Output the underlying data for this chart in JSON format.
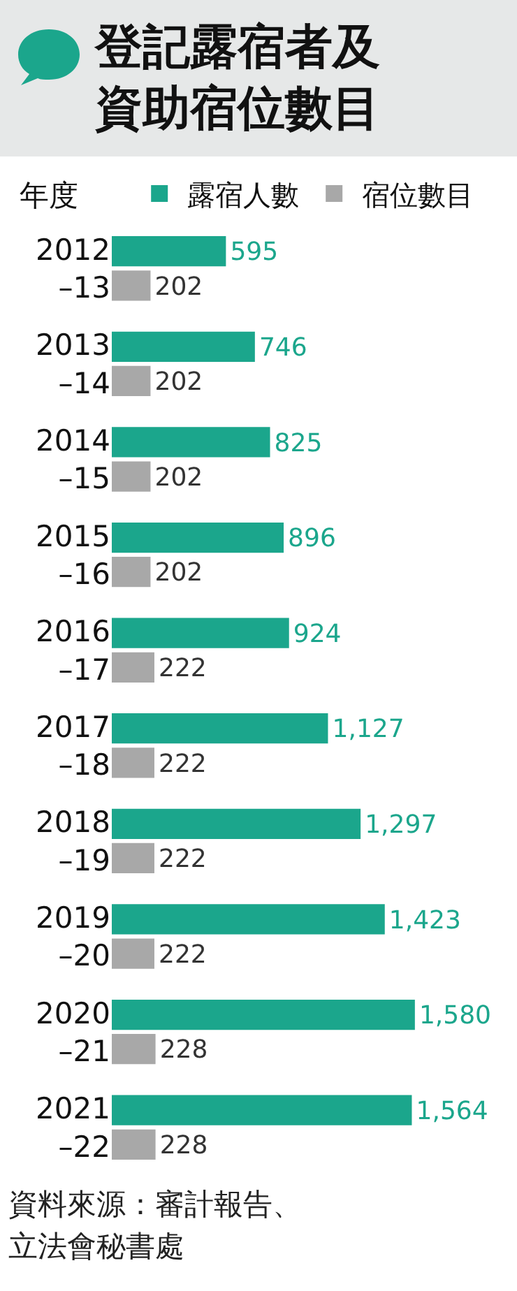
{
  "chart_data": {
    "type": "bar",
    "orientation": "horizontal",
    "title": "登記露宿者及資助宿位數目",
    "ylabel": "年度",
    "categories": [
      "2012\n–13",
      "2013\n–14",
      "2014\n–15",
      "2015\n–16",
      "2016\n–17",
      "2017\n–18",
      "2018\n–19",
      "2019\n–20",
      "2020\n–21",
      "2021\n–22"
    ],
    "series": [
      {
        "name": "露宿人數",
        "color": "#1ba68c",
        "values": [
          595,
          746,
          825,
          896,
          924,
          1127,
          1297,
          1423,
          1580,
          1564
        ],
        "value_labels": [
          "595",
          "746",
          "825",
          "896",
          "924",
          "1,127",
          "1,297",
          "1,423",
          "1,580",
          "1,564"
        ]
      },
      {
        "name": "宿位數目",
        "color": "#a8a8a8",
        "values": [
          202,
          202,
          202,
          202,
          222,
          222,
          222,
          222,
          228,
          228
        ],
        "value_labels": [
          "202",
          "202",
          "202",
          "202",
          "222",
          "222",
          "222",
          "222",
          "228",
          "228"
        ]
      }
    ],
    "legend": "top",
    "grid": false,
    "annotations": [
      "資料來源：審計報告、立法會秘書處"
    ]
  }
}
